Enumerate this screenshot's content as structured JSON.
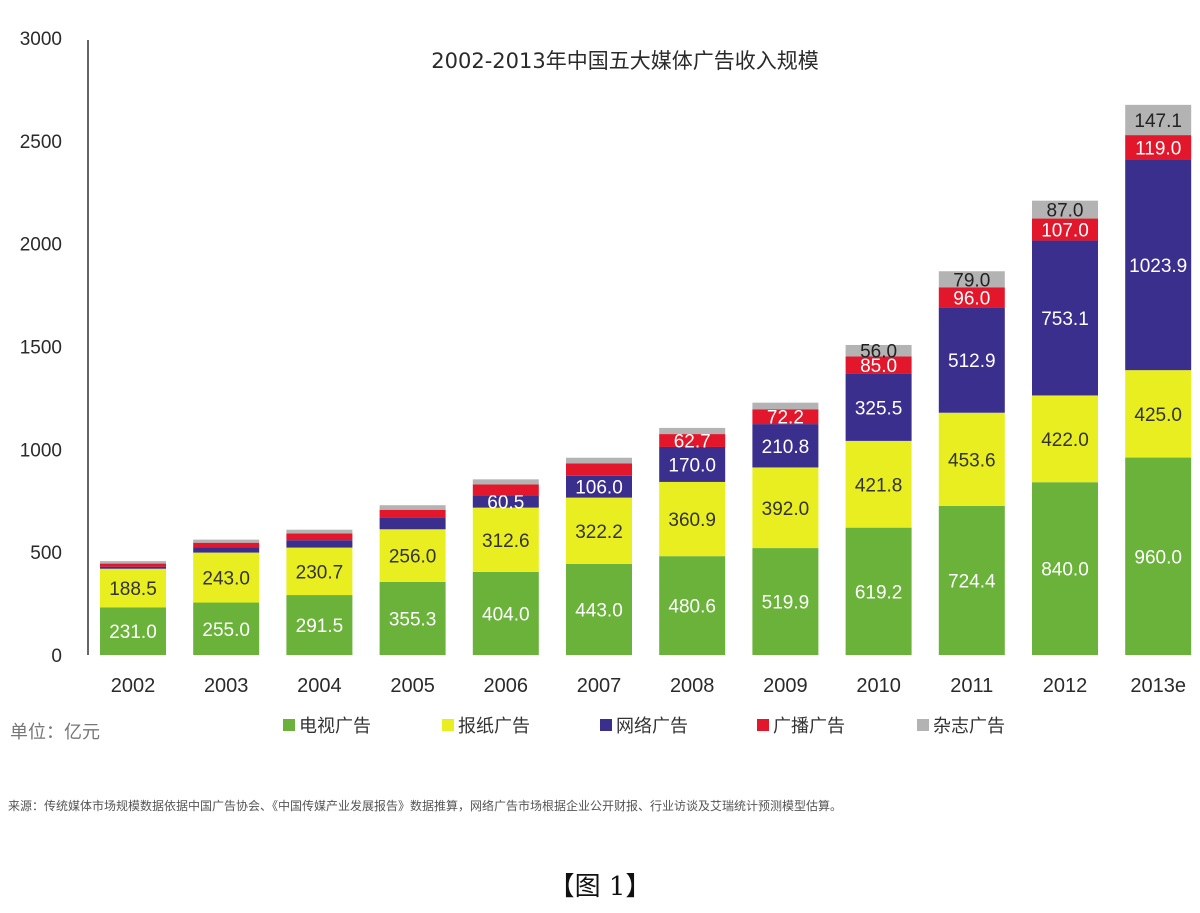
{
  "chart_data": {
    "type": "bar",
    "stacked": true,
    "title": "2002-2013年中国五大媒体广告收入规模",
    "xlabel": "",
    "ylabel": "",
    "ylim": [
      0,
      3000
    ],
    "yticks": [
      0,
      500,
      1000,
      1500,
      2000,
      2500,
      3000
    ],
    "categories": [
      "2002",
      "2003",
      "2004",
      "2005",
      "2006",
      "2007",
      "2008",
      "2009",
      "2010",
      "2011",
      "2012",
      "2013e"
    ],
    "legend_position": "bottom",
    "series": [
      {
        "name": "电视广告",
        "color": "#6ab23a",
        "label_color": "#ffffff",
        "values": [
          231.0,
          255.0,
          291.5,
          355.3,
          404.0,
          443.0,
          480.6,
          519.9,
          619.2,
          724.4,
          840.0,
          960.0
        ],
        "labels": [
          "231.0",
          "255.0",
          "291.5",
          "355.3",
          "404.0",
          "443.0",
          "480.6",
          "519.9",
          "619.2",
          "724.4",
          "840.0",
          "960.0"
        ]
      },
      {
        "name": "报纸广告",
        "color": "#e8ee1f",
        "label_color": "#333333",
        "values": [
          188.5,
          243.0,
          230.7,
          256.0,
          312.6,
          322.2,
          360.9,
          392.0,
          421.8,
          453.6,
          422.0,
          425.0
        ],
        "labels": [
          "188.5",
          "243.0",
          "230.7",
          "256.0",
          "312.6",
          "322.2",
          "360.9",
          "392.0",
          "421.8",
          "453.6",
          "422.0",
          "425.0"
        ]
      },
      {
        "name": "网络广告",
        "color": "#3b2f8e",
        "label_color": "#ffffff",
        "values": [
          10,
          25,
          36,
          55,
          60.5,
          106.0,
          170.0,
          210.8,
          325.5,
          512.9,
          753.1,
          1023.9
        ],
        "labels": [
          "",
          "",
          "",
          "",
          "60.5",
          "106.0",
          "170.0",
          "210.8",
          "325.5",
          "512.9",
          "753.1",
          "1023.9"
        ]
      },
      {
        "name": "广播广告",
        "color": "#e2172b",
        "label_color": "#ffffff",
        "values": [
          15,
          23,
          33,
          40,
          52,
          60,
          62.7,
          72.2,
          85.0,
          96.0,
          107.0,
          119.0
        ],
        "labels": [
          "",
          "",
          "",
          "",
          "",
          "",
          "62.7",
          "72.2",
          "85.0",
          "96.0",
          "107.0",
          "119.0"
        ]
      },
      {
        "name": "杂志广告",
        "color": "#b3b3b3",
        "label_color": "#222222",
        "values": [
          12,
          15,
          18,
          22,
          25,
          28,
          30,
          32,
          56.0,
          79.0,
          87.0,
          147.1
        ],
        "labels": [
          "",
          "",
          "",
          "",
          "",
          "",
          "",
          "",
          "56.0",
          "79.0",
          "87.0",
          "147.1"
        ]
      }
    ]
  },
  "unit_label": "单位：亿元",
  "source_note": "来源：传统媒体市场规模数据依据中国广告协会、《中国传媒产业发展报告》数据推算，网络广告市场根据企业公开财报、行业访谈及艾瑞统计预测模型估算。",
  "figure_caption": "【图 1】"
}
